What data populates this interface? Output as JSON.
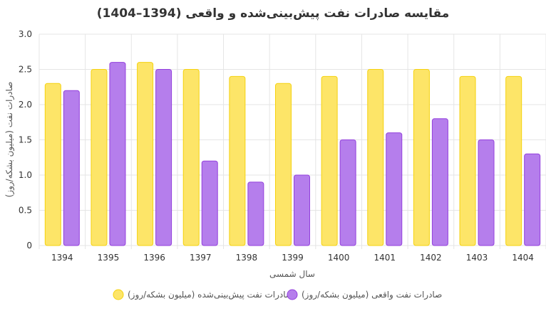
{
  "chart_data": {
    "type": "bar",
    "title": "مقایسه صادرات نفت پیش‌بینی‌شده و واقعی (1394–1404)",
    "xlabel": "سال شمسی",
    "ylabel": "صادرات نفت (میلیون بشکه/روز)",
    "ylim": [
      0,
      3.0
    ],
    "yticks": [
      "0",
      "0.5",
      "1.0",
      "1.5",
      "2.0",
      "2.5",
      "3.0"
    ],
    "grid": true,
    "legend_position": "bottom",
    "categories": [
      "1394",
      "1395",
      "1396",
      "1397",
      "1398",
      "1399",
      "1400",
      "1401",
      "1402",
      "1403",
      "1404"
    ],
    "series": [
      {
        "name": "صادرات نفت پیش‌بینی‌شده (میلیون بشکه/روز)",
        "color": "#fde568",
        "border": "#f5d20f",
        "values": [
          2.3,
          2.5,
          2.6,
          2.5,
          2.4,
          2.3,
          2.4,
          2.5,
          2.5,
          2.4,
          2.4
        ]
      },
      {
        "name": "صادرات نفت واقعی (میلیون بشکه/روز)",
        "color": "#b57eec",
        "border": "#9340dd",
        "values": [
          2.2,
          2.6,
          2.5,
          1.2,
          0.9,
          1.0,
          1.5,
          1.6,
          1.8,
          1.5,
          1.3
        ]
      }
    ]
  }
}
